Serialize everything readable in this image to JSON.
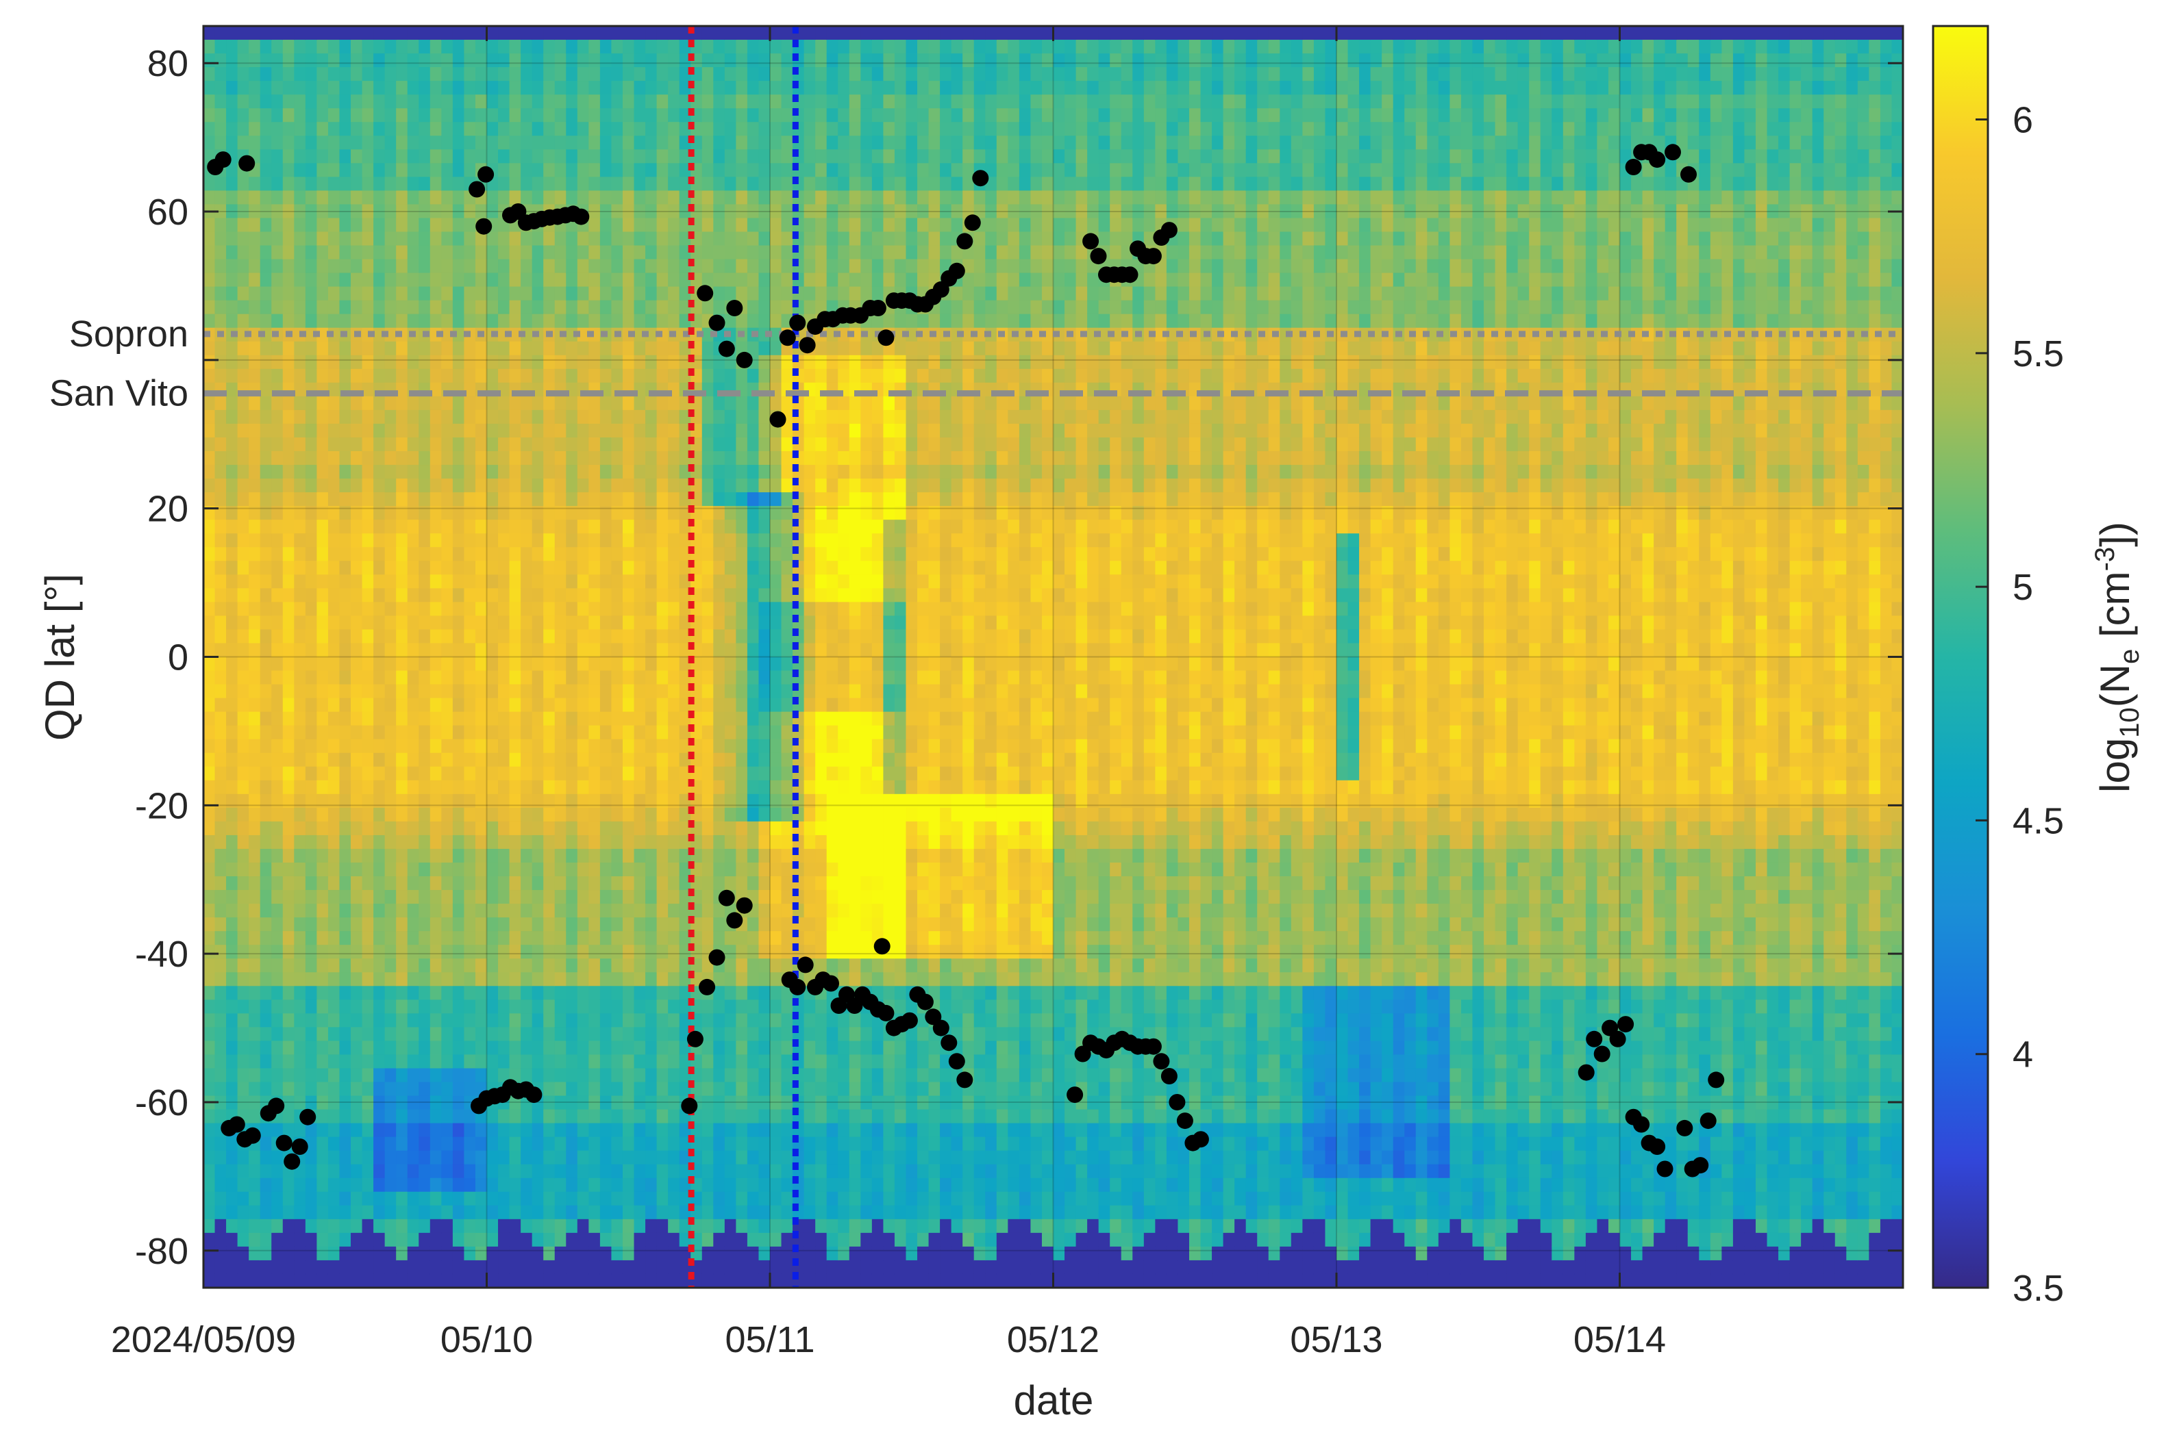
{
  "chart_data": {
    "type": "heatmap",
    "title": "",
    "xlabel": "date",
    "ylabel": "QD lat [°]",
    "x_axis": {
      "type": "date",
      "range": [
        "2024-05-09T00:00",
        "2024-05-15T00:00"
      ],
      "ticks": [
        {
          "date": "2024-05-09",
          "label": "2024/05/09"
        },
        {
          "date": "2024-05-10",
          "label": "05/10"
        },
        {
          "date": "2024-05-11",
          "label": "05/11"
        },
        {
          "date": "2024-05-12",
          "label": "05/12"
        },
        {
          "date": "2024-05-13",
          "label": "05/13"
        },
        {
          "date": "2024-05-14",
          "label": "05/14"
        }
      ]
    },
    "y_axis": {
      "range": [
        -85,
        85
      ],
      "ticks": [
        {
          "value": 80,
          "label": "80"
        },
        {
          "value": 60,
          "label": "60"
        },
        {
          "value": 40,
          "label": ""
        },
        {
          "value": 20,
          "label": "20"
        },
        {
          "value": 0,
          "label": "0"
        },
        {
          "value": -20,
          "label": "-20"
        },
        {
          "value": -40,
          "label": "-40"
        },
        {
          "value": -60,
          "label": "-60"
        },
        {
          "value": -80,
          "label": "-80"
        }
      ]
    },
    "grid": true,
    "colorbar": {
      "label": "log10(Ne [cm-3])",
      "label_parts": {
        "log": "log",
        "log_sub": "10",
        "open": "(N",
        "ne_sub": "e",
        "unit": " [cm",
        "unit_sup": "-3",
        "close": "])"
      },
      "range": [
        3.5,
        6.2
      ],
      "colormap": "parula",
      "ticks": [
        {
          "value": 3.5,
          "label": "3.5"
        },
        {
          "value": 4,
          "label": "4"
        },
        {
          "value": 4.5,
          "label": "4.5"
        },
        {
          "value": 5,
          "label": "5"
        },
        {
          "value": 5.5,
          "label": "5.5"
        },
        {
          "value": 6,
          "label": "6"
        }
      ]
    },
    "reference_lines": [
      {
        "orientation": "horizontal",
        "value": 43.5,
        "label": "Sopron",
        "style": "dotted",
        "color": "#8c8c8c"
      },
      {
        "orientation": "horizontal",
        "value": 35.5,
        "label": "San Vito",
        "style": "dashed",
        "color": "#8c8c8c"
      },
      {
        "orientation": "vertical",
        "date": "2024-05-10T17:20",
        "label": "",
        "style": "dotted",
        "color": "#e8141e"
      },
      {
        "orientation": "vertical",
        "date": "2024-05-11T02:10",
        "label": "",
        "style": "dotted",
        "color": "#0a1ee6"
      }
    ],
    "series": [
      {
        "type": "scatter",
        "color": "#000000",
        "points": [
          [
            "2024-05-09T01:00",
            66
          ],
          [
            "2024-05-09T01:40",
            67
          ],
          [
            "2024-05-09T03:40",
            66.5
          ],
          [
            "2024-05-09T23:10",
            63
          ],
          [
            "2024-05-09T23:45",
            58
          ],
          [
            "2024-05-09T23:55",
            65
          ],
          [
            "2024-05-10T02:00",
            59.5
          ],
          [
            "2024-05-10T02:40",
            60
          ],
          [
            "2024-05-10T03:20",
            58.5
          ],
          [
            "2024-05-10T04:00",
            58.7
          ],
          [
            "2024-05-10T04:40",
            59
          ],
          [
            "2024-05-10T05:20",
            59.2
          ],
          [
            "2024-05-10T06:00",
            59.3
          ],
          [
            "2024-05-10T06:40",
            59.5
          ],
          [
            "2024-05-10T07:20",
            59.7
          ],
          [
            "2024-05-10T08:00",
            59.3
          ],
          [
            "2024-05-10T18:30",
            49
          ],
          [
            "2024-05-10T19:30",
            45
          ],
          [
            "2024-05-10T20:20",
            41.5
          ],
          [
            "2024-05-10T21:00",
            47
          ],
          [
            "2024-05-10T21:50",
            40
          ],
          [
            "2024-05-11T00:40",
            32
          ],
          [
            "2024-05-11T01:30",
            43
          ],
          [
            "2024-05-11T02:20",
            45
          ],
          [
            "2024-05-11T03:10",
            42
          ],
          [
            "2024-05-11T03:50",
            44.5
          ],
          [
            "2024-05-11T04:40",
            45.5
          ],
          [
            "2024-05-11T05:20",
            45.5
          ],
          [
            "2024-05-11T06:10",
            46
          ],
          [
            "2024-05-11T06:50",
            46
          ],
          [
            "2024-05-11T07:40",
            46
          ],
          [
            "2024-05-11T08:30",
            47
          ],
          [
            "2024-05-11T09:10",
            47
          ],
          [
            "2024-05-11T09:50",
            43
          ],
          [
            "2024-05-11T10:30",
            48
          ],
          [
            "2024-05-11T11:10",
            48
          ],
          [
            "2024-05-11T11:50",
            48
          ],
          [
            "2024-05-11T12:30",
            47.5
          ],
          [
            "2024-05-11T13:10",
            47.5
          ],
          [
            "2024-05-11T13:50",
            48.5
          ],
          [
            "2024-05-11T14:30",
            49.5
          ],
          [
            "2024-05-11T15:10",
            51
          ],
          [
            "2024-05-11T15:50",
            52
          ],
          [
            "2024-05-11T16:30",
            56
          ],
          [
            "2024-05-11T17:10",
            58.5
          ],
          [
            "2024-05-11T17:50",
            64.5
          ],
          [
            "2024-05-12T03:10",
            56
          ],
          [
            "2024-05-12T03:50",
            54
          ],
          [
            "2024-05-12T04:30",
            51.5
          ],
          [
            "2024-05-12T05:10",
            51.5
          ],
          [
            "2024-05-12T05:50",
            51.5
          ],
          [
            "2024-05-12T06:30",
            51.5
          ],
          [
            "2024-05-12T07:10",
            55
          ],
          [
            "2024-05-12T07:50",
            54
          ],
          [
            "2024-05-12T08:30",
            54
          ],
          [
            "2024-05-12T09:10",
            56.5
          ],
          [
            "2024-05-12T09:50",
            57.5
          ],
          [
            "2024-05-14T01:10",
            66
          ],
          [
            "2024-05-14T01:50",
            68
          ],
          [
            "2024-05-14T02:30",
            68
          ],
          [
            "2024-05-14T03:10",
            67
          ],
          [
            "2024-05-14T04:30",
            68
          ],
          [
            "2024-05-14T05:50",
            65
          ],
          [
            "2024-05-09T02:10",
            -63.5
          ],
          [
            "2024-05-09T02:50",
            -63
          ],
          [
            "2024-05-09T03:30",
            -65
          ],
          [
            "2024-05-09T04:10",
            -64.5
          ],
          [
            "2024-05-09T05:30",
            -61.5
          ],
          [
            "2024-05-09T06:10",
            -60.5
          ],
          [
            "2024-05-09T06:50",
            -65.5
          ],
          [
            "2024-05-09T07:30",
            -68
          ],
          [
            "2024-05-09T08:10",
            -66
          ],
          [
            "2024-05-09T08:50",
            -62
          ],
          [
            "2024-05-09T23:20",
            -60.5
          ],
          [
            "2024-05-10T00:00",
            -59.5
          ],
          [
            "2024-05-10T00:40",
            -59.2
          ],
          [
            "2024-05-10T01:20",
            -59
          ],
          [
            "2024-05-10T02:00",
            -58
          ],
          [
            "2024-05-10T02:40",
            -58.5
          ],
          [
            "2024-05-10T03:20",
            -58.3
          ],
          [
            "2024-05-10T04:00",
            -59
          ],
          [
            "2024-05-10T17:10",
            -60.5
          ],
          [
            "2024-05-10T17:40",
            -51.5
          ],
          [
            "2024-05-10T18:40",
            -44.5
          ],
          [
            "2024-05-10T19:30",
            -40.5
          ],
          [
            "2024-05-10T20:20",
            -32.5
          ],
          [
            "2024-05-10T21:00",
            -35.5
          ],
          [
            "2024-05-10T21:50",
            -33.5
          ],
          [
            "2024-05-11T01:40",
            -43.5
          ],
          [
            "2024-05-11T02:20",
            -44.5
          ],
          [
            "2024-05-11T03:00",
            -41.5
          ],
          [
            "2024-05-11T03:50",
            -44.5
          ],
          [
            "2024-05-11T04:30",
            -43.5
          ],
          [
            "2024-05-11T05:10",
            -44
          ],
          [
            "2024-05-11T05:50",
            -47
          ],
          [
            "2024-05-11T06:30",
            -45.5
          ],
          [
            "2024-05-11T07:10",
            -47
          ],
          [
            "2024-05-11T07:50",
            -45.5
          ],
          [
            "2024-05-11T08:30",
            -46.5
          ],
          [
            "2024-05-11T09:10",
            -47.5
          ],
          [
            "2024-05-11T09:30",
            -39
          ],
          [
            "2024-05-11T09:50",
            -48
          ],
          [
            "2024-05-11T10:30",
            -50
          ],
          [
            "2024-05-11T11:10",
            -49.5
          ],
          [
            "2024-05-11T11:50",
            -49
          ],
          [
            "2024-05-11T12:30",
            -45.5
          ],
          [
            "2024-05-11T13:10",
            -46.5
          ],
          [
            "2024-05-11T13:50",
            -48.5
          ],
          [
            "2024-05-11T14:30",
            -50
          ],
          [
            "2024-05-11T15:10",
            -52
          ],
          [
            "2024-05-11T15:50",
            -54.5
          ],
          [
            "2024-05-11T16:30",
            -57
          ],
          [
            "2024-05-12T01:50",
            -59
          ],
          [
            "2024-05-12T02:30",
            -53.5
          ],
          [
            "2024-05-12T03:10",
            -52
          ],
          [
            "2024-05-12T03:50",
            -52.5
          ],
          [
            "2024-05-12T04:30",
            -53
          ],
          [
            "2024-05-12T05:10",
            -52
          ],
          [
            "2024-05-12T05:50",
            -51.5
          ],
          [
            "2024-05-12T06:30",
            -52
          ],
          [
            "2024-05-12T07:10",
            -52.5
          ],
          [
            "2024-05-12T07:50",
            -52.5
          ],
          [
            "2024-05-12T08:30",
            -52.5
          ],
          [
            "2024-05-12T09:10",
            -54.5
          ],
          [
            "2024-05-12T09:50",
            -56.5
          ],
          [
            "2024-05-12T10:30",
            -60
          ],
          [
            "2024-05-12T11:10",
            -62.5
          ],
          [
            "2024-05-12T11:50",
            -65.5
          ],
          [
            "2024-05-12T12:30",
            -65
          ],
          [
            "2024-05-13T21:10",
            -56
          ],
          [
            "2024-05-13T21:50",
            -51.5
          ],
          [
            "2024-05-13T22:30",
            -53.5
          ],
          [
            "2024-05-13T23:10",
            -50
          ],
          [
            "2024-05-13T23:50",
            -51.5
          ],
          [
            "2024-05-14T00:30",
            -49.5
          ],
          [
            "2024-05-14T01:10",
            -62
          ],
          [
            "2024-05-14T01:50",
            -63
          ],
          [
            "2024-05-14T02:30",
            -65.5
          ],
          [
            "2024-05-14T03:10",
            -66
          ],
          [
            "2024-05-14T03:50",
            -69
          ],
          [
            "2024-05-14T05:30",
            -63.5
          ],
          [
            "2024-05-14T06:10",
            -69
          ],
          [
            "2024-05-14T06:50",
            -68.5
          ],
          [
            "2024-05-14T07:30",
            -62.5
          ],
          [
            "2024-05-14T08:10",
            -57
          ]
        ]
      }
    ]
  }
}
